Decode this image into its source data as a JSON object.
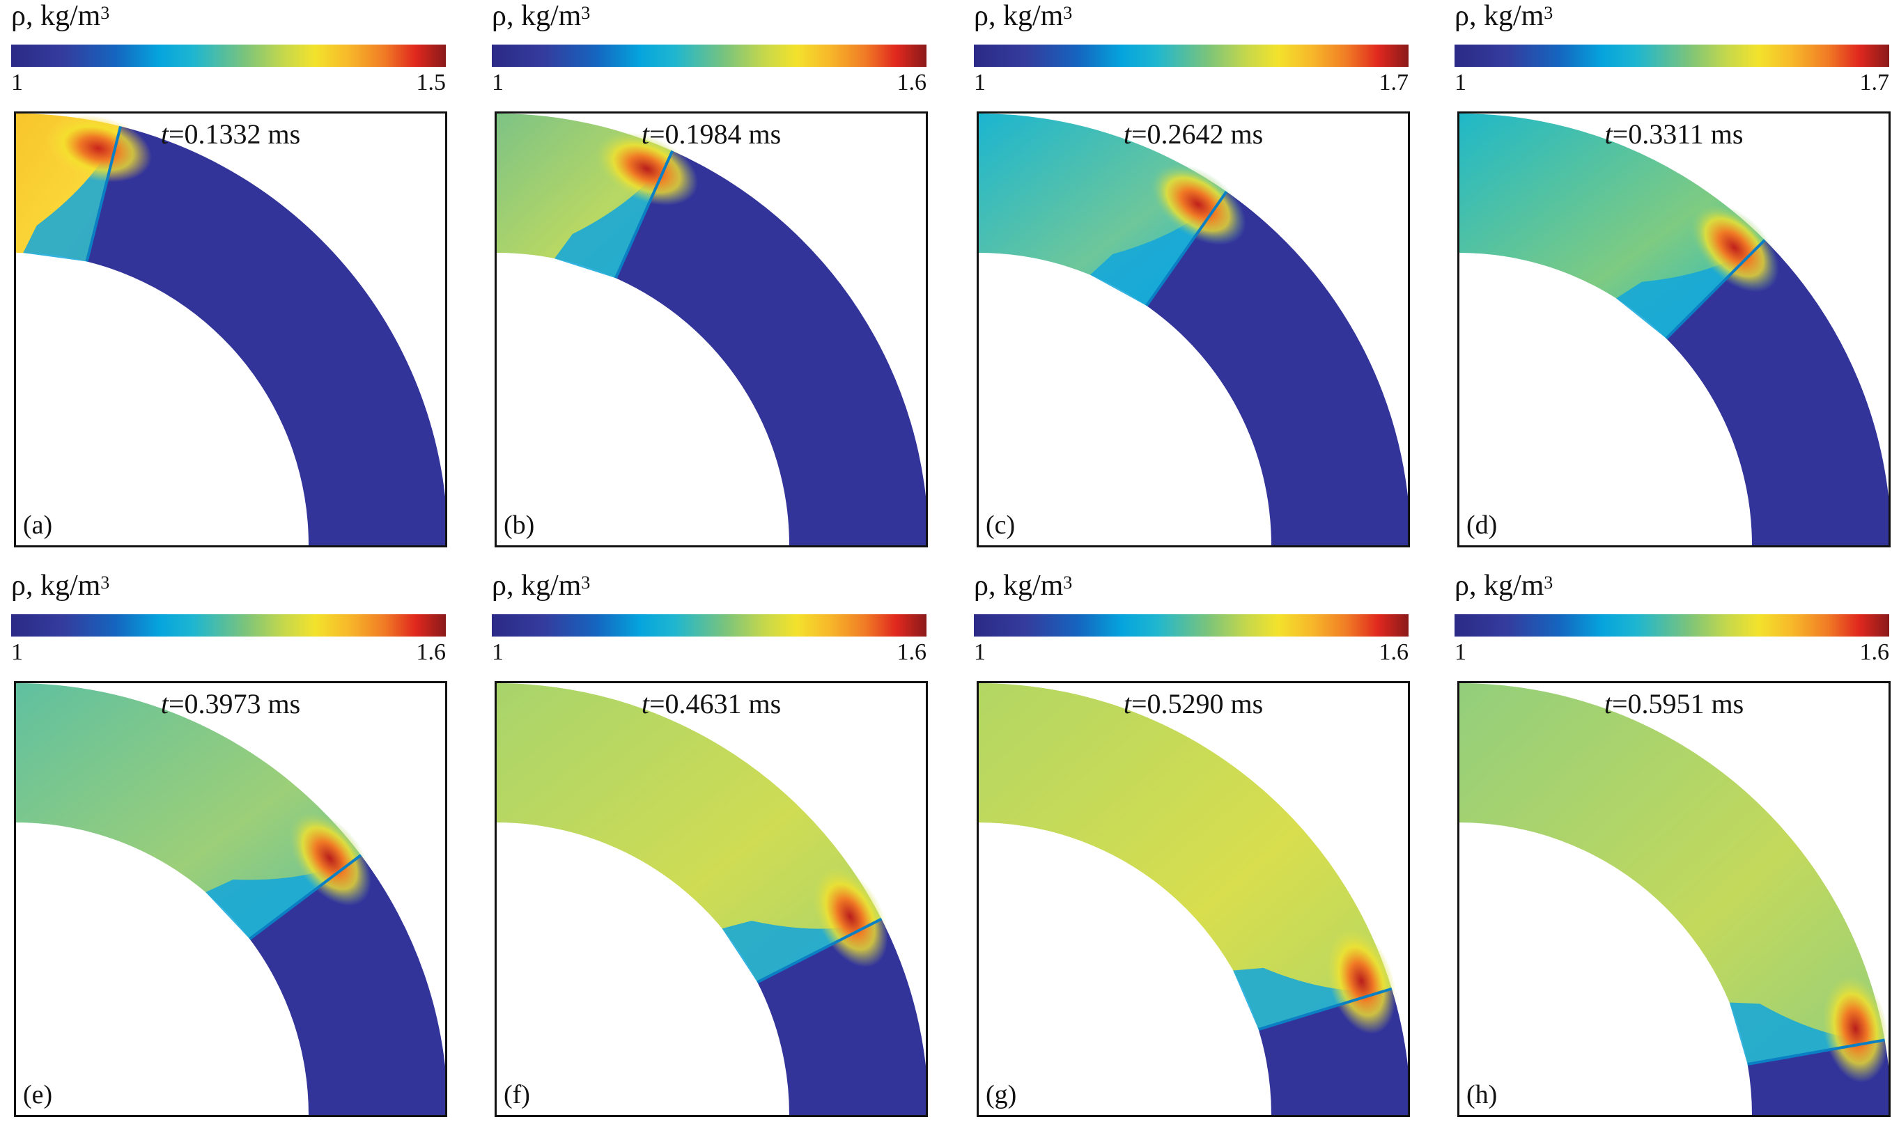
{
  "figure": {
    "colorbar_label": "ρ, kg/m",
    "colorbar_label_exponent": "3",
    "panels": [
      {
        "letter": "(a)",
        "time_var": "t",
        "time_value": "=0.1332 ms",
        "cb_min": "1",
        "cb_max": "1.5",
        "shock_angle_deg": 76,
        "bg": "#f7c52c",
        "mid": "#fbd83a",
        "peak": "#c9251c"
      },
      {
        "letter": "(b)",
        "time_var": "t",
        "time_value": "=0.1984 ms",
        "cb_min": "1",
        "cb_max": "1.6",
        "shock_angle_deg": 66,
        "bg": "#7dc385",
        "mid": "#b8d863",
        "peak": "#b81e1c"
      },
      {
        "letter": "(c)",
        "time_var": "t",
        "time_value": "=0.2642 ms",
        "cb_min": "1",
        "cb_max": "1.7",
        "shock_angle_deg": 55,
        "bg": "#1bb5d0",
        "mid": "#6ec79a",
        "peak": "#c0201c"
      },
      {
        "letter": "(d)",
        "time_var": "t",
        "time_value": "=0.3311 ms",
        "cb_min": "1",
        "cb_max": "1.7",
        "shock_angle_deg": 45,
        "bg": "#1fb8c8",
        "mid": "#7ecb82",
        "peak": "#c0201c"
      },
      {
        "letter": "(e)",
        "time_var": "t",
        "time_value": "=0.3973 ms",
        "cb_min": "1",
        "cb_max": "1.6",
        "shock_angle_deg": 37,
        "bg": "#5fc0a0",
        "mid": "#9ccf78",
        "peak": "#b81e1c"
      },
      {
        "letter": "(f)",
        "time_var": "t",
        "time_value": "=0.4631 ms",
        "cb_min": "1",
        "cb_max": "1.6",
        "shock_angle_deg": 27,
        "bg": "#a8d46c",
        "mid": "#cfdc54",
        "peak": "#b81e1c"
      },
      {
        "letter": "(g)",
        "time_var": "t",
        "time_value": "=0.5290 ms",
        "cb_min": "1",
        "cb_max": "1.6",
        "shock_angle_deg": 17,
        "bg": "#b2d664",
        "mid": "#d8de4e",
        "peak": "#b81e1c"
      },
      {
        "letter": "(h)",
        "time_var": "t",
        "time_value": "=0.5951 ms",
        "cb_min": "1",
        "cb_max": "1.6",
        "shock_angle_deg": 10,
        "bg": "#93ce7c",
        "mid": "#c3d95c",
        "peak": "#b81e1c"
      }
    ],
    "colors": {
      "low": "#33349a",
      "cold_front": "#12a6dc"
    }
  }
}
